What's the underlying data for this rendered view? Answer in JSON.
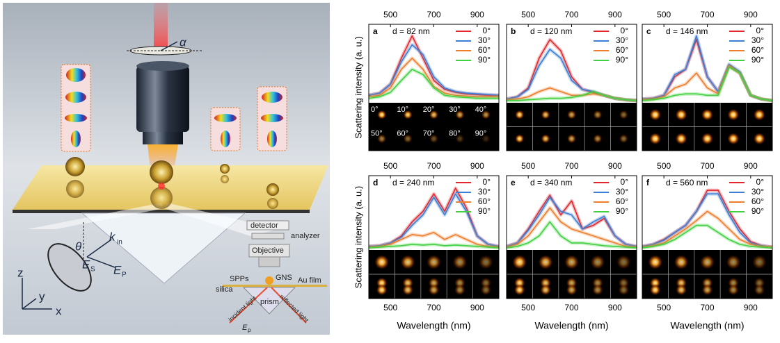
{
  "illustration": {
    "labels": [
      "α",
      "θ",
      "k",
      "in",
      "E",
      "S",
      "E",
      "P",
      "z",
      "y",
      "x",
      "detector",
      "analyzer",
      "Objective",
      "SPPs",
      "GNS",
      "Au film",
      "silica",
      "prism",
      "incident light",
      "reflected light",
      "E",
      "p"
    ]
  },
  "chart_data": [
    {
      "type": "line",
      "label": "a",
      "title": "d = 82 nm",
      "y_label": "Scattering intensity (a. u.)",
      "x": [
        400,
        450,
        500,
        550,
        600,
        650,
        700,
        750,
        800,
        850,
        900,
        950,
        1000
      ],
      "xlim": [
        400,
        1000
      ],
      "xticks": [
        500,
        700,
        900
      ],
      "ylim": [
        0,
        1
      ],
      "image_labels": [
        "0°",
        "10°",
        "20°",
        "30°",
        "40°",
        "50°",
        "60°",
        "70°",
        "80°",
        "90°"
      ],
      "series": [
        {
          "name": "0°",
          "color": "#e3262b",
          "values": [
            0.1,
            0.13,
            0.25,
            0.6,
            0.9,
            0.6,
            0.3,
            0.18,
            0.14,
            0.12,
            0.11,
            0.1,
            0.1
          ]
        },
        {
          "name": "30°",
          "color": "#3b7fd4",
          "values": [
            0.1,
            0.13,
            0.25,
            0.55,
            0.78,
            0.65,
            0.35,
            0.2,
            0.15,
            0.13,
            0.12,
            0.11,
            0.1
          ]
        },
        {
          "name": "60°",
          "color": "#ee7d2c",
          "values": [
            0.08,
            0.1,
            0.2,
            0.45,
            0.6,
            0.45,
            0.22,
            0.13,
            0.1,
            0.09,
            0.08,
            0.08,
            0.08
          ]
        },
        {
          "name": "90°",
          "color": "#40d040",
          "values": [
            0.06,
            0.08,
            0.14,
            0.3,
            0.45,
            0.38,
            0.2,
            0.1,
            0.08,
            0.07,
            0.06,
            0.06,
            0.06
          ]
        }
      ]
    },
    {
      "type": "line",
      "label": "b",
      "title": "d = 120 nm",
      "x": [
        400,
        450,
        500,
        550,
        600,
        650,
        700,
        750,
        800,
        850,
        900,
        950,
        1000
      ],
      "xlim": [
        400,
        1000
      ],
      "xticks": [
        500,
        700,
        900
      ],
      "ylim": [
        0,
        1
      ],
      "series": [
        {
          "name": "0°",
          "color": "#e3262b",
          "values": [
            0.05,
            0.08,
            0.2,
            0.6,
            0.85,
            0.7,
            0.35,
            0.18,
            0.14,
            0.1,
            0.06,
            0.04,
            0.03
          ]
        },
        {
          "name": "30°",
          "color": "#3b7fd4",
          "values": [
            0.05,
            0.08,
            0.18,
            0.5,
            0.72,
            0.6,
            0.3,
            0.18,
            0.15,
            0.1,
            0.06,
            0.04,
            0.03
          ]
        },
        {
          "name": "60°",
          "color": "#ee7d2c",
          "values": [
            0.04,
            0.05,
            0.08,
            0.15,
            0.2,
            0.15,
            0.1,
            0.1,
            0.12,
            0.1,
            0.06,
            0.04,
            0.03
          ]
        },
        {
          "name": "90°",
          "color": "#40d040",
          "values": [
            0.03,
            0.03,
            0.04,
            0.05,
            0.06,
            0.06,
            0.07,
            0.1,
            0.15,
            0.1,
            0.06,
            0.04,
            0.03
          ]
        }
      ]
    },
    {
      "type": "line",
      "label": "c",
      "title": "d = 146 nm",
      "x": [
        400,
        450,
        500,
        550,
        600,
        650,
        700,
        750,
        800,
        850,
        900,
        950,
        1000
      ],
      "xlim": [
        400,
        1000
      ],
      "xticks": [
        500,
        700,
        900
      ],
      "ylim": [
        0,
        1
      ],
      "series": [
        {
          "name": "0°",
          "color": "#e3262b",
          "values": [
            0.05,
            0.06,
            0.1,
            0.35,
            0.45,
            0.85,
            0.35,
            0.15,
            0.5,
            0.4,
            0.1,
            0.05,
            0.03
          ]
        },
        {
          "name": "30°",
          "color": "#3b7fd4",
          "values": [
            0.05,
            0.06,
            0.1,
            0.38,
            0.45,
            0.9,
            0.35,
            0.15,
            0.52,
            0.42,
            0.1,
            0.05,
            0.03
          ]
        },
        {
          "name": "60°",
          "color": "#ee7d2c",
          "values": [
            0.04,
            0.05,
            0.08,
            0.2,
            0.25,
            0.4,
            0.2,
            0.12,
            0.5,
            0.4,
            0.1,
            0.05,
            0.03
          ]
        },
        {
          "name": "90°",
          "color": "#40d040",
          "values": [
            0.03,
            0.04,
            0.06,
            0.1,
            0.12,
            0.12,
            0.1,
            0.1,
            0.48,
            0.4,
            0.1,
            0.05,
            0.03
          ]
        }
      ]
    },
    {
      "type": "line",
      "label": "d",
      "title": "d = 240 nm",
      "y_label": "Scattering intensity (a. u.)",
      "x_label": "Wavelength (nm)",
      "x": [
        400,
        450,
        500,
        550,
        600,
        650,
        700,
        750,
        800,
        850,
        900,
        950,
        1000
      ],
      "xlim": [
        400,
        1000
      ],
      "xticks": [
        500,
        700,
        900
      ],
      "ylim": [
        0,
        1
      ],
      "series": [
        {
          "name": "0°",
          "color": "#e3262b",
          "values": [
            0.05,
            0.06,
            0.1,
            0.2,
            0.4,
            0.55,
            0.8,
            0.55,
            0.88,
            0.6,
            0.2,
            0.08,
            0.05
          ]
        },
        {
          "name": "30°",
          "color": "#3b7fd4",
          "values": [
            0.05,
            0.06,
            0.1,
            0.18,
            0.35,
            0.5,
            0.75,
            0.5,
            0.8,
            0.55,
            0.2,
            0.08,
            0.05
          ]
        },
        {
          "name": "60°",
          "color": "#ee7d2c",
          "values": [
            0.04,
            0.05,
            0.08,
            0.15,
            0.22,
            0.2,
            0.25,
            0.15,
            0.22,
            0.15,
            0.08,
            0.05,
            0.04
          ]
        },
        {
          "name": "90°",
          "color": "#40d040",
          "values": [
            0.03,
            0.04,
            0.05,
            0.06,
            0.08,
            0.07,
            0.08,
            0.06,
            0.07,
            0.06,
            0.05,
            0.04,
            0.03
          ]
        }
      ]
    },
    {
      "type": "line",
      "label": "e",
      "title": "d = 340 nm",
      "x_label": "Wavelength (nm)",
      "x": [
        400,
        450,
        500,
        550,
        600,
        650,
        700,
        750,
        800,
        850,
        900,
        950,
        1000
      ],
      "xlim": [
        400,
        1000
      ],
      "xticks": [
        500,
        700,
        900
      ],
      "ylim": [
        0,
        1
      ],
      "series": [
        {
          "name": "0°",
          "color": "#e3262b",
          "values": [
            0.05,
            0.1,
            0.3,
            0.55,
            0.78,
            0.5,
            0.7,
            0.3,
            0.35,
            0.45,
            0.2,
            0.08,
            0.05
          ]
        },
        {
          "name": "30°",
          "color": "#3b7fd4",
          "values": [
            0.05,
            0.1,
            0.28,
            0.5,
            0.75,
            0.55,
            0.5,
            0.3,
            0.4,
            0.48,
            0.2,
            0.08,
            0.05
          ]
        },
        {
          "name": "60°",
          "color": "#ee7d2c",
          "values": [
            0.04,
            0.08,
            0.2,
            0.4,
            0.6,
            0.4,
            0.3,
            0.25,
            0.2,
            0.15,
            0.1,
            0.05,
            0.04
          ]
        },
        {
          "name": "90°",
          "color": "#40d040",
          "values": [
            0.03,
            0.05,
            0.1,
            0.2,
            0.4,
            0.2,
            0.1,
            0.1,
            0.08,
            0.06,
            0.05,
            0.04,
            0.03
          ]
        }
      ]
    },
    {
      "type": "line",
      "label": "f",
      "title": "d = 560 nm",
      "x_label": "Wavelength (nm)",
      "x": [
        400,
        450,
        500,
        550,
        600,
        650,
        700,
        750,
        800,
        850,
        900,
        950,
        1000
      ],
      "xlim": [
        400,
        1000
      ],
      "xticks": [
        500,
        700,
        900
      ],
      "ylim": [
        0,
        1
      ],
      "series": [
        {
          "name": "0°",
          "color": "#e3262b",
          "values": [
            0.05,
            0.08,
            0.15,
            0.25,
            0.35,
            0.55,
            0.85,
            0.85,
            0.55,
            0.3,
            0.12,
            0.06,
            0.04
          ]
        },
        {
          "name": "30°",
          "color": "#3b7fd4",
          "values": [
            0.05,
            0.08,
            0.14,
            0.25,
            0.35,
            0.55,
            0.8,
            0.8,
            0.5,
            0.25,
            0.1,
            0.06,
            0.04
          ]
        },
        {
          "name": "60°",
          "color": "#ee7d2c",
          "values": [
            0.04,
            0.06,
            0.1,
            0.2,
            0.3,
            0.42,
            0.55,
            0.45,
            0.3,
            0.15,
            0.08,
            0.05,
            0.04
          ]
        },
        {
          "name": "90°",
          "color": "#40d040",
          "values": [
            0.03,
            0.05,
            0.08,
            0.15,
            0.25,
            0.35,
            0.35,
            0.25,
            0.15,
            0.08,
            0.05,
            0.04,
            0.03
          ]
        }
      ]
    }
  ]
}
